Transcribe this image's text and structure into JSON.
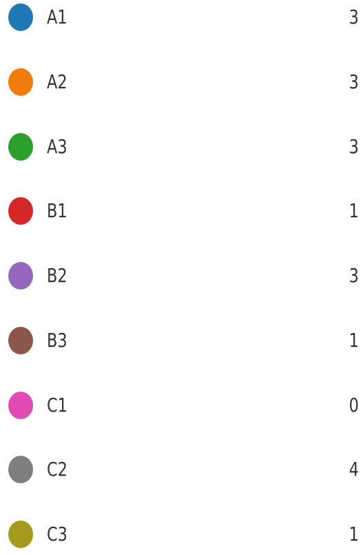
{
  "items": [
    {
      "label": "A1",
      "color": "#1f77b4",
      "count": 3
    },
    {
      "label": "A2",
      "color": "#f07c0e",
      "count": 3
    },
    {
      "label": "A3",
      "color": "#2ca02c",
      "count": 3
    },
    {
      "label": "B1",
      "color": "#d62728",
      "count": 1
    },
    {
      "label": "B2",
      "color": "#9467bd",
      "count": 3
    },
    {
      "label": "B3",
      "color": "#8c564b",
      "count": 1
    },
    {
      "label": "C1",
      "color": "#e04cb4",
      "count": 0
    },
    {
      "label": "C2",
      "color": "#7f7f7f",
      "count": 4
    },
    {
      "label": "C3",
      "color": "#a39a1e",
      "count": 1
    }
  ]
}
